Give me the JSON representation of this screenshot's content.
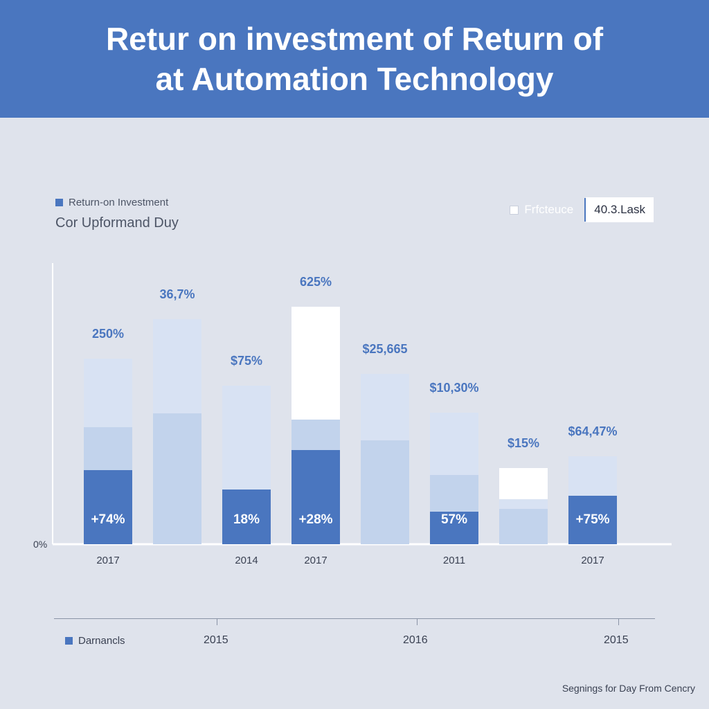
{
  "header": {
    "title_line1": "Retur on investment of Return of",
    "title_line2": "at Automation Technology"
  },
  "legend": {
    "left_label": "Return-on Investment",
    "left_color": "#4a76bf",
    "subtitle": "Cor Upformand Duy",
    "right_label": "Frfcteuce",
    "right_box": "40.3.Lask"
  },
  "chart_data": {
    "type": "bar",
    "ylabel": "0%",
    "categories": [
      "2017",
      "",
      "2014",
      "2017",
      "",
      "2011",
      "",
      "2017"
    ],
    "segment_colors": [
      "#4a76bf",
      "#c2d3ec",
      "#d8e2f3",
      "#ffffff"
    ],
    "bars": [
      {
        "top_label": "250%",
        "inner_label": "+74%",
        "segments": [
          107,
          62,
          99
        ]
      },
      {
        "top_label": "36,7%",
        "inner_label": "",
        "segments": [
          0,
          189,
          136
        ]
      },
      {
        "top_label": "$75%",
        "inner_label": "18%",
        "segments": [
          79,
          0,
          150
        ]
      },
      {
        "top_label": "625%",
        "inner_label": "+28%",
        "segments": [
          136,
          44,
          0,
          163
        ]
      },
      {
        "top_label": "$25,665",
        "inner_label": "",
        "segments": [
          0,
          150,
          96
        ]
      },
      {
        "top_label": "$10,30%",
        "inner_label": "57%",
        "segments": [
          47,
          53,
          90
        ]
      },
      {
        "top_label": "$15%",
        "inner_label": "",
        "segments": [
          0,
          51,
          14,
          45
        ]
      },
      {
        "top_label": "$64,47%",
        "inner_label": "+75%",
        "segments": [
          70,
          0,
          57
        ]
      }
    ]
  },
  "bottom_axis": {
    "legend_label": "Darnancls",
    "labels": [
      "2015",
      "2016",
      "2015"
    ]
  },
  "footer": {
    "note": "Segnings for Day From Cencry"
  }
}
